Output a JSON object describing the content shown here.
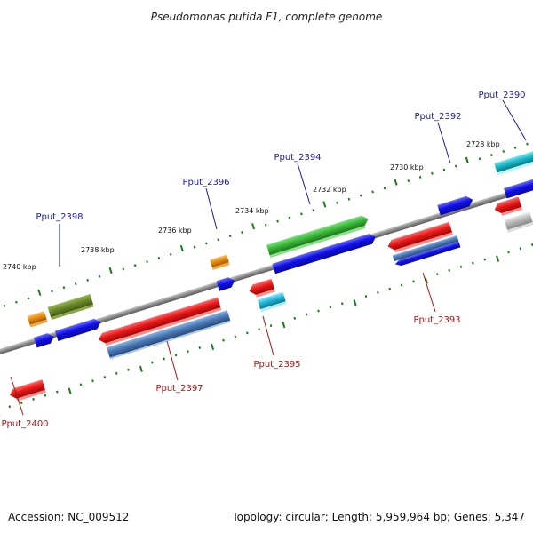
{
  "title": "Pseudomonas putida F1, complete genome",
  "footer": {
    "accession": "Accession: NC_009512",
    "summary": "Topology: circular; Length: 5,959,964 bp; Genes: 5,347"
  },
  "scale_labels": [
    "2740 kbp",
    "2738 kbp",
    "2736 kbp",
    "2734 kbp",
    "2732 kbp",
    "2730 kbp",
    "2728 kbp"
  ],
  "gene_labels_top": [
    "Pput_2398",
    "Pput_2396",
    "Pput_2394",
    "Pput_2392",
    "Pput_2390"
  ],
  "gene_labels_bottom": [
    "Pput_2400",
    "Pput_2397",
    "Pput_2395",
    "Pput_2393"
  ],
  "colors": {
    "backbone": "#8a8a8a",
    "tick": "#1e7a1e",
    "top_label": "#1a1aa8",
    "bottom_label": "#b01010",
    "feature_red": "#e81818",
    "feature_blue": "#1010e8",
    "feature_steel": "#4a7ab8",
    "feature_green": "#3ab83a",
    "feature_olive": "#6a8a2a",
    "feature_orange": "#e88a10",
    "feature_cyan": "#20b8d8",
    "feature_teal": "#18b8c8",
    "feature_gray": "#b8b8b8"
  }
}
